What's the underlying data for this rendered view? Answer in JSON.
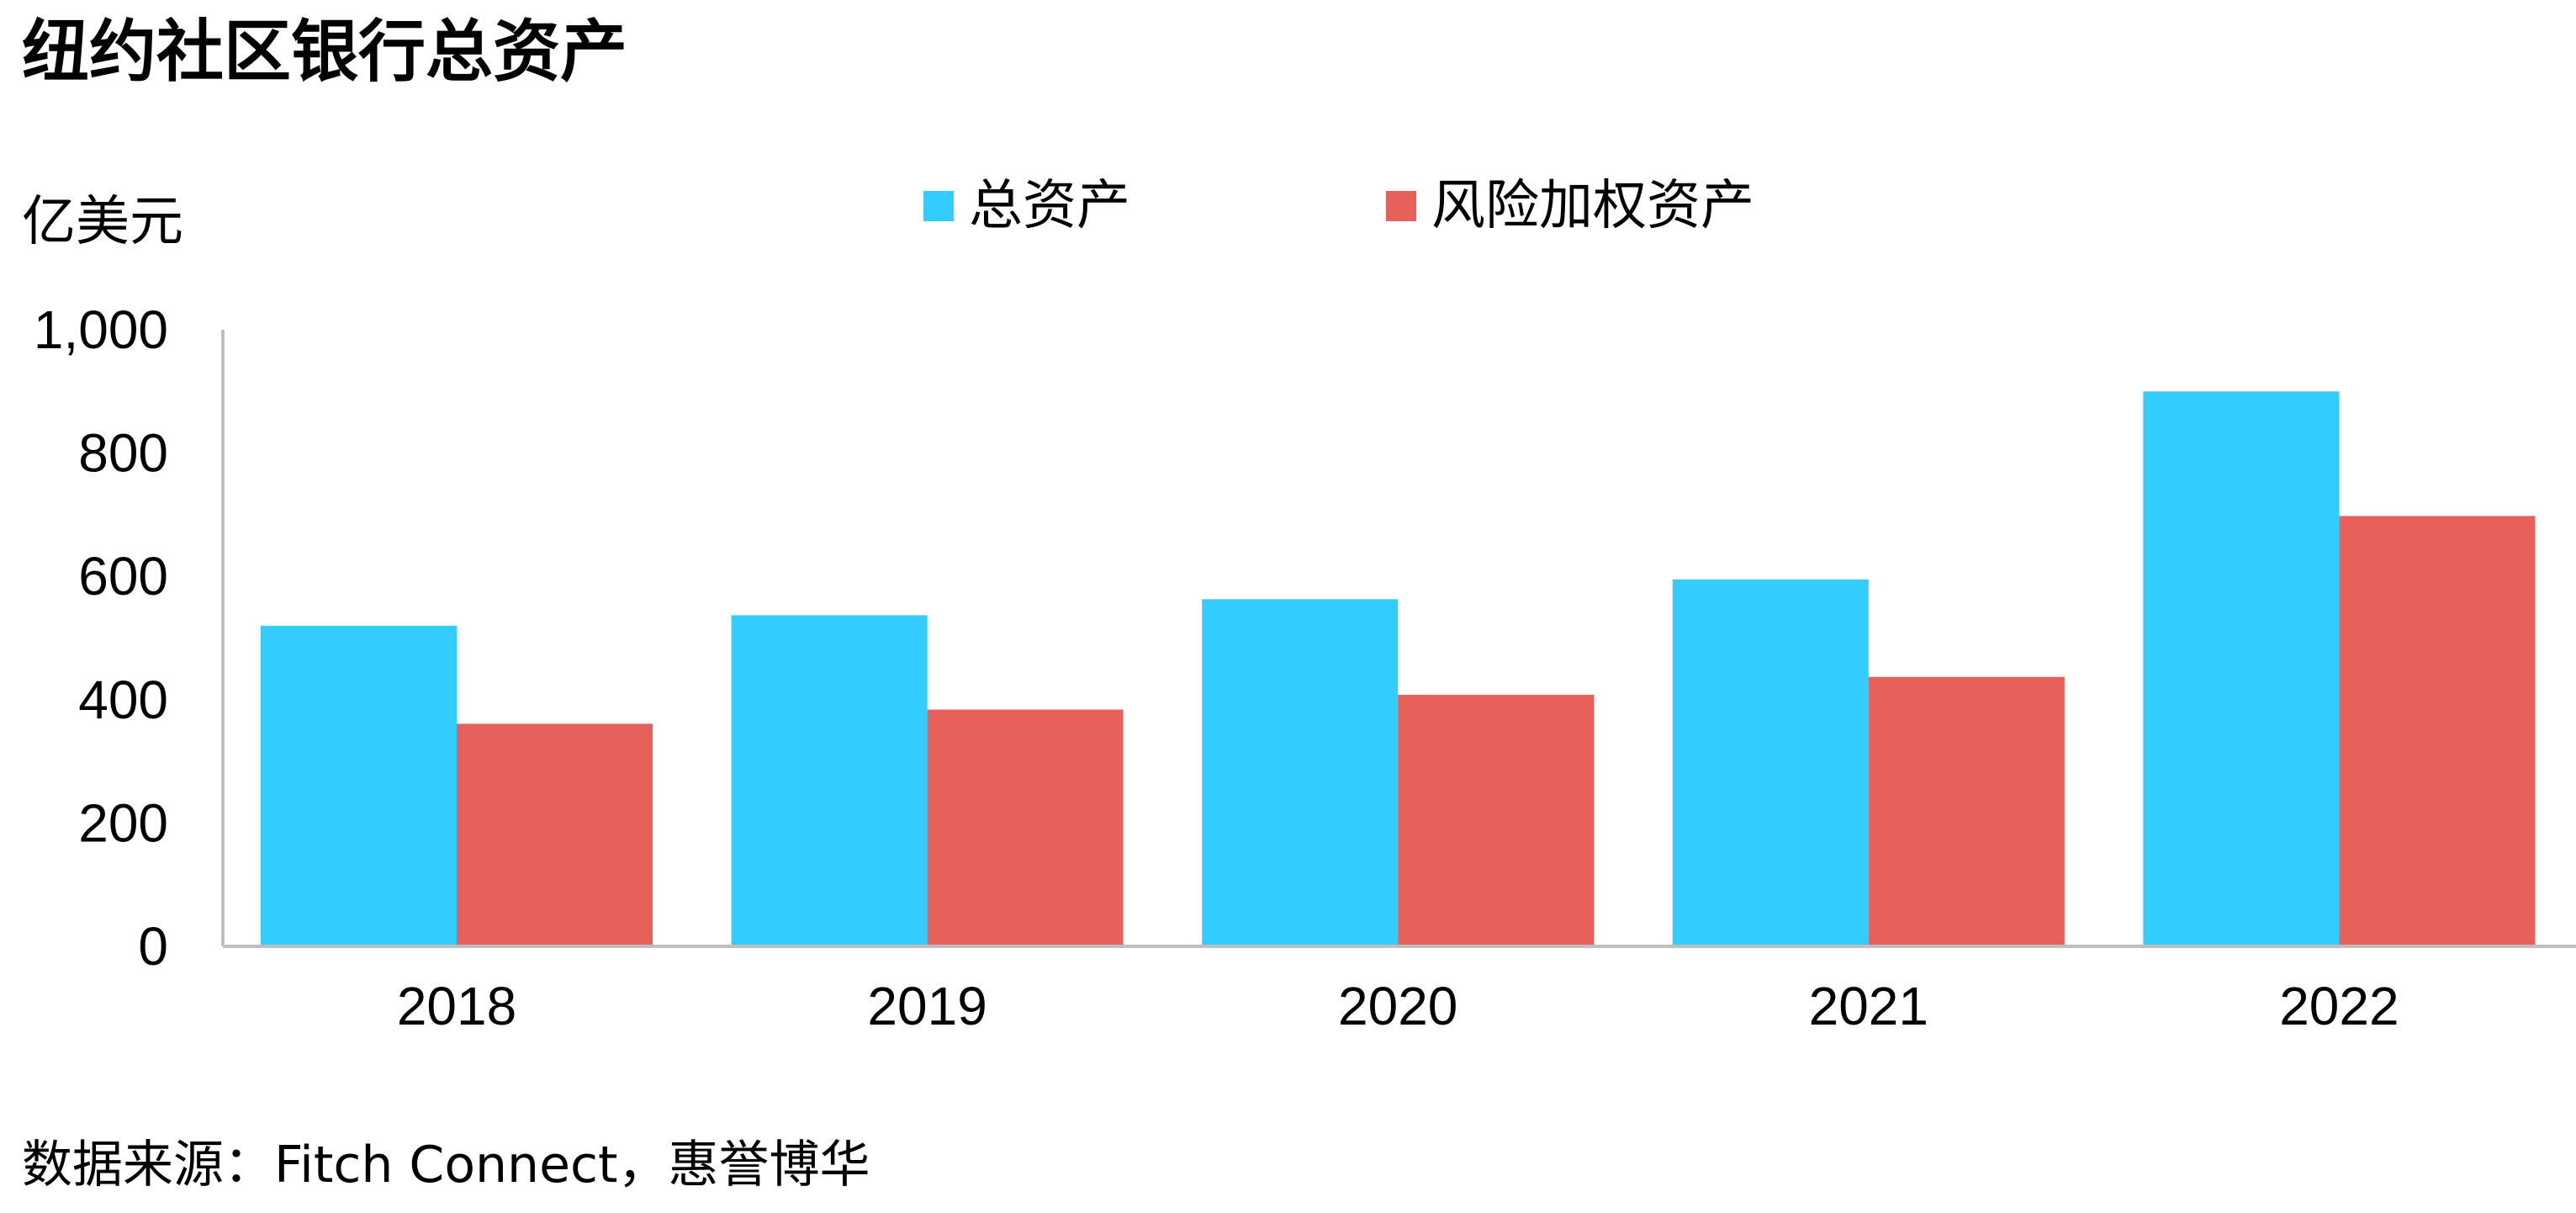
{
  "title": "纽约社区银行总资产",
  "unit_label": "亿美元",
  "source": "数据来源：Fitch Connect，惠誉博华",
  "colors": {
    "total_assets": "#33CCFF",
    "risk_weighted_assets": "#E8605A",
    "axis": "#BFBFBF"
  },
  "chart_data": {
    "type": "bar",
    "title": "纽约社区银行总资产",
    "ylabel": "亿美元",
    "xlabel": "",
    "categories": [
      "2018",
      "2019",
      "2020",
      "2021",
      "2022"
    ],
    "series": [
      {
        "name": "总资产",
        "values": [
          520,
          537,
          563,
          595,
          900
        ]
      },
      {
        "name": "风险加权资产",
        "values": [
          361,
          384,
          408,
          437,
          698
        ]
      }
    ],
    "ylim": [
      0,
      1000
    ],
    "yticks": [
      0,
      200,
      400,
      600,
      800,
      1000
    ],
    "ytick_labels": [
      "0",
      "200",
      "400",
      "600",
      "800",
      "1,000"
    ],
    "grid": false,
    "legend": "top-center"
  }
}
